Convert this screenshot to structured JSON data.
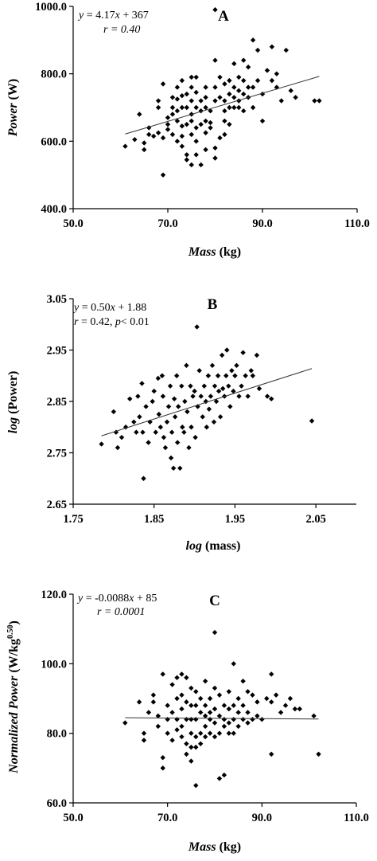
{
  "chart_data": [
    {
      "panel": "A",
      "type": "scatter",
      "equation_parts": [
        "y",
        " = 4.17",
        "x",
        " + 367"
      ],
      "r_label": "r = 0.40",
      "xlabel": [
        "Mass",
        " (kg)"
      ],
      "ylabel": [
        "Power",
        " (W)"
      ],
      "xlim": [
        50,
        110
      ],
      "ylim": [
        400,
        1000
      ],
      "xticks": [
        "50.0",
        "70.0",
        "90.0",
        "110.0"
      ],
      "yticks": [
        "400.0",
        "600.0",
        "800.0",
        "1000.0"
      ],
      "fit": {
        "slope": 4.17,
        "intercept": 367,
        "x_range": [
          61,
          102
        ]
      },
      "points": [
        [
          61,
          585
        ],
        [
          63,
          605
        ],
        [
          64,
          680
        ],
        [
          65,
          575
        ],
        [
          65,
          595
        ],
        [
          66,
          640
        ],
        [
          66,
          620
        ],
        [
          67,
          615
        ],
        [
          68,
          720
        ],
        [
          68,
          700
        ],
        [
          68,
          625
        ],
        [
          69,
          770
        ],
        [
          69,
          500
        ],
        [
          69,
          610
        ],
        [
          70,
          670
        ],
        [
          70,
          650
        ],
        [
          70,
          635
        ],
        [
          71,
          730
        ],
        [
          71,
          700
        ],
        [
          71,
          680
        ],
        [
          71,
          620
        ],
        [
          72,
          760
        ],
        [
          72,
          725
        ],
        [
          72,
          690
        ],
        [
          72,
          660
        ],
        [
          72,
          600
        ],
        [
          73,
          780
        ],
        [
          73,
          735
        ],
        [
          73,
          700
        ],
        [
          73,
          645
        ],
        [
          73,
          615
        ],
        [
          73,
          585
        ],
        [
          74,
          740
        ],
        [
          74,
          700
        ],
        [
          74,
          650
        ],
        [
          74,
          560
        ],
        [
          74,
          545
        ],
        [
          75,
          790
        ],
        [
          75,
          760
        ],
        [
          75,
          720
        ],
        [
          75,
          680
        ],
        [
          75,
          660
        ],
        [
          75,
          620
        ],
        [
          75,
          530
        ],
        [
          76,
          790
        ],
        [
          76,
          745
        ],
        [
          76,
          700
        ],
        [
          76,
          640
        ],
        [
          76,
          600
        ],
        [
          76,
          560
        ],
        [
          77,
          720
        ],
        [
          77,
          690
        ],
        [
          77,
          650
        ],
        [
          77,
          530
        ],
        [
          78,
          760
        ],
        [
          78,
          730
        ],
        [
          78,
          700
        ],
        [
          78,
          660
        ],
        [
          78,
          625
        ],
        [
          78,
          575
        ],
        [
          79,
          690
        ],
        [
          79,
          655
        ],
        [
          79,
          640
        ],
        [
          80,
          990
        ],
        [
          80,
          840
        ],
        [
          80,
          760
        ],
        [
          80,
          720
        ],
        [
          80,
          580
        ],
        [
          80,
          550
        ],
        [
          81,
          790
        ],
        [
          81,
          730
        ],
        [
          81,
          610
        ],
        [
          82,
          770
        ],
        [
          82,
          720
        ],
        [
          82,
          690
        ],
        [
          82,
          660
        ],
        [
          82,
          620
        ],
        [
          83,
          780
        ],
        [
          83,
          740
        ],
        [
          83,
          700
        ],
        [
          83,
          650
        ],
        [
          84,
          830
        ],
        [
          84,
          760
        ],
        [
          84,
          730
        ],
        [
          84,
          700
        ],
        [
          85,
          790
        ],
        [
          85,
          750
        ],
        [
          85,
          700
        ],
        [
          85,
          720
        ],
        [
          86,
          840
        ],
        [
          86,
          780
        ],
        [
          86,
          740
        ],
        [
          86,
          690
        ],
        [
          87,
          820
        ],
        [
          87,
          760
        ],
        [
          87,
          730
        ],
        [
          88,
          900
        ],
        [
          88,
          760
        ],
        [
          88,
          700
        ],
        [
          89,
          870
        ],
        [
          89,
          780
        ],
        [
          90,
          740
        ],
        [
          90,
          660
        ],
        [
          91,
          810
        ],
        [
          92,
          880
        ],
        [
          92,
          780
        ],
        [
          93,
          800
        ],
        [
          93,
          760
        ],
        [
          94,
          720
        ],
        [
          95,
          870
        ],
        [
          96,
          750
        ],
        [
          97,
          730
        ],
        [
          101,
          720
        ],
        [
          102,
          720
        ]
      ]
    },
    {
      "panel": "B",
      "type": "scatter",
      "equation_parts": [
        "y",
        " = 0.50",
        "x",
        " + 1.88"
      ],
      "r_label_parts": [
        "r",
        " = 0.42, ",
        "p",
        "< 0.01"
      ],
      "xlabel": [
        "log",
        " (mass)"
      ],
      "ylabel": [
        "log",
        " (Power)"
      ],
      "xlim": [
        1.75,
        2.1
      ],
      "ylim": [
        2.65,
        3.05
      ],
      "xticks": [
        "1.75",
        "1.85",
        "1.95",
        "2.05"
      ],
      "yticks": [
        "2.65",
        "2.75",
        "2.85",
        "2.95",
        "3.05"
      ],
      "fit": {
        "x": [
          1.785,
          2.045
        ],
        "y": [
          2.783,
          2.914
        ]
      },
      "points": [
        [
          1.785,
          2.767
        ],
        [
          1.8,
          2.83
        ],
        [
          1.803,
          2.79
        ],
        [
          1.805,
          2.76
        ],
        [
          1.81,
          2.78
        ],
        [
          1.815,
          2.8
        ],
        [
          1.82,
          2.855
        ],
        [
          1.825,
          2.81
        ],
        [
          1.828,
          2.79
        ],
        [
          1.83,
          2.86
        ],
        [
          1.832,
          2.82
        ],
        [
          1.835,
          2.885
        ],
        [
          1.836,
          2.79
        ],
        [
          1.837,
          2.7
        ],
        [
          1.84,
          2.84
        ],
        [
          1.843,
          2.77
        ],
        [
          1.845,
          2.81
        ],
        [
          1.848,
          2.85
        ],
        [
          1.85,
          2.87
        ],
        [
          1.852,
          2.79
        ],
        [
          1.855,
          2.895
        ],
        [
          1.856,
          2.825
        ],
        [
          1.858,
          2.8
        ],
        [
          1.86,
          2.9
        ],
        [
          1.861,
          2.86
        ],
        [
          1.862,
          2.78
        ],
        [
          1.864,
          2.76
        ],
        [
          1.866,
          2.81
        ],
        [
          1.868,
          2.84
        ],
        [
          1.87,
          2.88
        ],
        [
          1.871,
          2.74
        ],
        [
          1.872,
          2.79
        ],
        [
          1.874,
          2.72
        ],
        [
          1.875,
          2.855
        ],
        [
          1.876,
          2.82
        ],
        [
          1.878,
          2.9
        ],
        [
          1.879,
          2.77
        ],
        [
          1.88,
          2.84
        ],
        [
          1.882,
          2.72
        ],
        [
          1.884,
          2.88
        ],
        [
          1.885,
          2.8
        ],
        [
          1.887,
          2.79
        ],
        [
          1.888,
          2.85
        ],
        [
          1.89,
          2.92
        ],
        [
          1.891,
          2.83
        ],
        [
          1.893,
          2.76
        ],
        [
          1.895,
          2.88
        ],
        [
          1.896,
          2.8
        ],
        [
          1.898,
          2.86
        ],
        [
          1.9,
          2.87
        ],
        [
          1.901,
          2.78
        ],
        [
          1.903,
          2.995
        ],
        [
          1.904,
          2.84
        ],
        [
          1.906,
          2.91
        ],
        [
          1.908,
          2.86
        ],
        [
          1.91,
          2.82
        ],
        [
          1.912,
          2.88
        ],
        [
          1.914,
          2.85
        ],
        [
          1.915,
          2.8
        ],
        [
          1.917,
          2.9
        ],
        [
          1.918,
          2.835
        ],
        [
          1.92,
          2.86
        ],
        [
          1.922,
          2.92
        ],
        [
          1.924,
          2.81
        ],
        [
          1.925,
          2.88
        ],
        [
          1.927,
          2.85
        ],
        [
          1.929,
          2.9
        ],
        [
          1.93,
          2.87
        ],
        [
          1.932,
          2.82
        ],
        [
          1.934,
          2.94
        ],
        [
          1.935,
          2.875
        ],
        [
          1.937,
          2.86
        ],
        [
          1.939,
          2.9
        ],
        [
          1.94,
          2.95
        ],
        [
          1.942,
          2.88
        ],
        [
          1.944,
          2.84
        ],
        [
          1.946,
          2.91
        ],
        [
          1.948,
          2.87
        ],
        [
          1.95,
          2.9
        ],
        [
          1.952,
          2.92
        ],
        [
          1.955,
          2.86
        ],
        [
          1.958,
          2.88
        ],
        [
          1.96,
          2.945
        ],
        [
          1.963,
          2.9
        ],
        [
          1.966,
          2.86
        ],
        [
          1.97,
          2.91
        ],
        [
          1.972,
          2.9
        ],
        [
          1.977,
          2.94
        ],
        [
          1.98,
          2.875
        ],
        [
          1.99,
          2.86
        ],
        [
          1.995,
          2.855
        ],
        [
          2.045,
          2.812
        ]
      ]
    },
    {
      "panel": "C",
      "type": "scatter",
      "equation_parts": [
        "y",
        " = -0.0088",
        "x",
        " + 85"
      ],
      "r_label": "r = 0.0001",
      "xlabel": [
        "Mass",
        " (kg)"
      ],
      "ylabel": [
        "Normalized Power",
        " (W/kg",
        "0.50",
        ")"
      ],
      "xlim": [
        50,
        110
      ],
      "ylim": [
        60,
        120
      ],
      "xticks": [
        "50.0",
        "70.0",
        "90.0",
        "110.0"
      ],
      "yticks": [
        "60.0",
        "80.0",
        "100.0",
        "120.0"
      ],
      "fit": {
        "slope": -0.0088,
        "intercept": 85,
        "x_range": [
          61,
          102
        ]
      },
      "points": [
        [
          61,
          83
        ],
        [
          64,
          89
        ],
        [
          65,
          80
        ],
        [
          65,
          78
        ],
        [
          66,
          86
        ],
        [
          67,
          91
        ],
        [
          67,
          89
        ],
        [
          68,
          82
        ],
        [
          68,
          85
        ],
        [
          69,
          97
        ],
        [
          69,
          70
        ],
        [
          69,
          73
        ],
        [
          70,
          88
        ],
        [
          70,
          84
        ],
        [
          70,
          80
        ],
        [
          71,
          94
        ],
        [
          71,
          86
        ],
        [
          71,
          78
        ],
        [
          72,
          96
        ],
        [
          72,
          90
        ],
        [
          72,
          84
        ],
        [
          72,
          81
        ],
        [
          73,
          97
        ],
        [
          73,
          91
        ],
        [
          73,
          87
        ],
        [
          73,
          82
        ],
        [
          73,
          79
        ],
        [
          74,
          96
        ],
        [
          74,
          89
        ],
        [
          74,
          84
        ],
        [
          74,
          77
        ],
        [
          74,
          74
        ],
        [
          75,
          93
        ],
        [
          75,
          88
        ],
        [
          75,
          84
        ],
        [
          75,
          80
        ],
        [
          75,
          76
        ],
        [
          75,
          72
        ],
        [
          76,
          92
        ],
        [
          76,
          88
        ],
        [
          76,
          84
        ],
        [
          76,
          79
        ],
        [
          76,
          76
        ],
        [
          76,
          65
        ],
        [
          77,
          90
        ],
        [
          77,
          86
        ],
        [
          77,
          80
        ],
        [
          77,
          77
        ],
        [
          78,
          95
        ],
        [
          78,
          88
        ],
        [
          78,
          85
        ],
        [
          78,
          82
        ],
        [
          78,
          79
        ],
        [
          79,
          90
        ],
        [
          79,
          86
        ],
        [
          79,
          84
        ],
        [
          79,
          80
        ],
        [
          80,
          109
        ],
        [
          80,
          93
        ],
        [
          80,
          87
        ],
        [
          80,
          83
        ],
        [
          80,
          79
        ],
        [
          81,
          91
        ],
        [
          81,
          85
        ],
        [
          81,
          80
        ],
        [
          81,
          67
        ],
        [
          82,
          88
        ],
        [
          82,
          84
        ],
        [
          82,
          82
        ],
        [
          82,
          68
        ],
        [
          83,
          92
        ],
        [
          83,
          87
        ],
        [
          83,
          83
        ],
        [
          83,
          80
        ],
        [
          84,
          100
        ],
        [
          84,
          88
        ],
        [
          84,
          84
        ],
        [
          84,
          80
        ],
        [
          85,
          90
        ],
        [
          85,
          86
        ],
        [
          85,
          82
        ],
        [
          86,
          95
        ],
        [
          86,
          88
        ],
        [
          86,
          84
        ],
        [
          87,
          92
        ],
        [
          87,
          86
        ],
        [
          87,
          83
        ],
        [
          88,
          91
        ],
        [
          88,
          84
        ],
        [
          89,
          89
        ],
        [
          89,
          85
        ],
        [
          90,
          84
        ],
        [
          91,
          90
        ],
        [
          92,
          97
        ],
        [
          92,
          89
        ],
        [
          92,
          74
        ],
        [
          93,
          91
        ],
        [
          94,
          86
        ],
        [
          95,
          88
        ],
        [
          96,
          90
        ],
        [
          97,
          87
        ],
        [
          98,
          87
        ],
        [
          101,
          85
        ],
        [
          102,
          74
        ]
      ]
    }
  ]
}
